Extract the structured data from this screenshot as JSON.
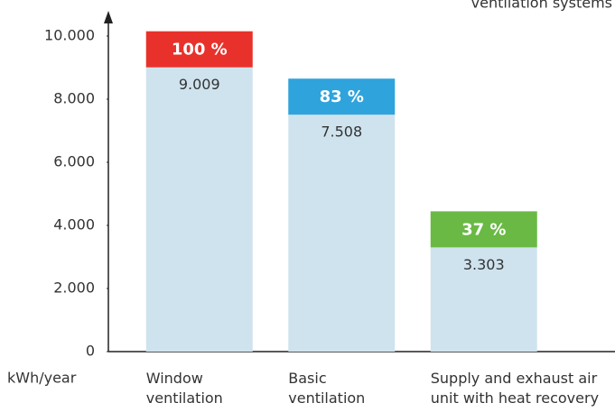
{
  "chart_data": {
    "type": "bar",
    "title": "ventilation systems",
    "y_label": "kWh/year",
    "categories": [
      [
        "Window",
        "ventilation"
      ],
      [
        "Basic",
        "ventilation"
      ],
      [
        "Supply and exhaust air",
        "unit with heat recovery"
      ]
    ],
    "values": [
      9009,
      7508,
      3303
    ],
    "value_labels": [
      "9.009",
      "7.508",
      "3.303"
    ],
    "color": "#cfe3ee",
    "annotations": [
      {
        "label": "100 %",
        "color": "#e8312a"
      },
      {
        "label": "83 %",
        "color": "#2fa3dc"
      },
      {
        "label": "37 %",
        "color": "#6ab945"
      }
    ],
    "ylim": [
      0,
      10000
    ],
    "yticks": [
      0,
      {
        "value": 2000,
        "label": "2.000"
      },
      {
        "value": 4000,
        "label": "4.000"
      },
      {
        "value": 6000,
        "label": "6.000"
      },
      {
        "value": 8000,
        "label": "8.000"
      },
      {
        "value": 10000,
        "label": "10.000"
      }
    ],
    "grid": false
  }
}
